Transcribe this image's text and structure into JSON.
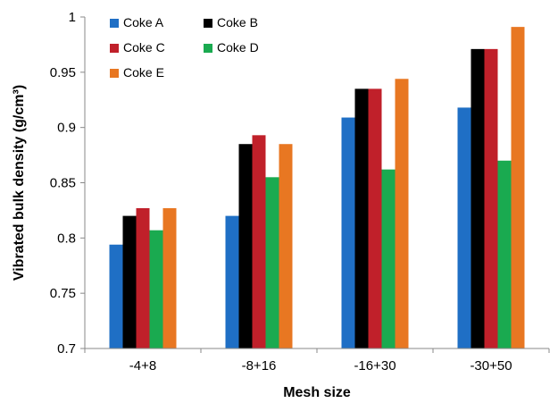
{
  "chart_data": {
    "type": "bar",
    "title": "",
    "xlabel": "Mesh size",
    "ylabel": "Vibrated bulk density (g/cm³)",
    "ylim": [
      0.7,
      1.0
    ],
    "ytick_step": 0.05,
    "yticks": [
      "0.7",
      "0.75",
      "0.8",
      "0.85",
      "0.9",
      "0.95",
      "1"
    ],
    "grid": false,
    "legend_position": "top-left",
    "categories": [
      "-4+8",
      "-8+16",
      "-16+30",
      "-30+50"
    ],
    "series": [
      {
        "name": "Coke A",
        "color": "#1f6fc5",
        "values": [
          0.794,
          0.82,
          0.909,
          0.918
        ]
      },
      {
        "name": "Coke B",
        "color": "#000000",
        "values": [
          0.82,
          0.885,
          0.935,
          0.971
        ]
      },
      {
        "name": "Coke C",
        "color": "#c0202a",
        "values": [
          0.827,
          0.893,
          0.935,
          0.971
        ]
      },
      {
        "name": "Coke D",
        "color": "#1aaa50",
        "values": [
          0.807,
          0.855,
          0.862,
          0.87
        ]
      },
      {
        "name": "Coke E",
        "color": "#e87722",
        "values": [
          0.827,
          0.885,
          0.944,
          0.991
        ]
      }
    ]
  }
}
